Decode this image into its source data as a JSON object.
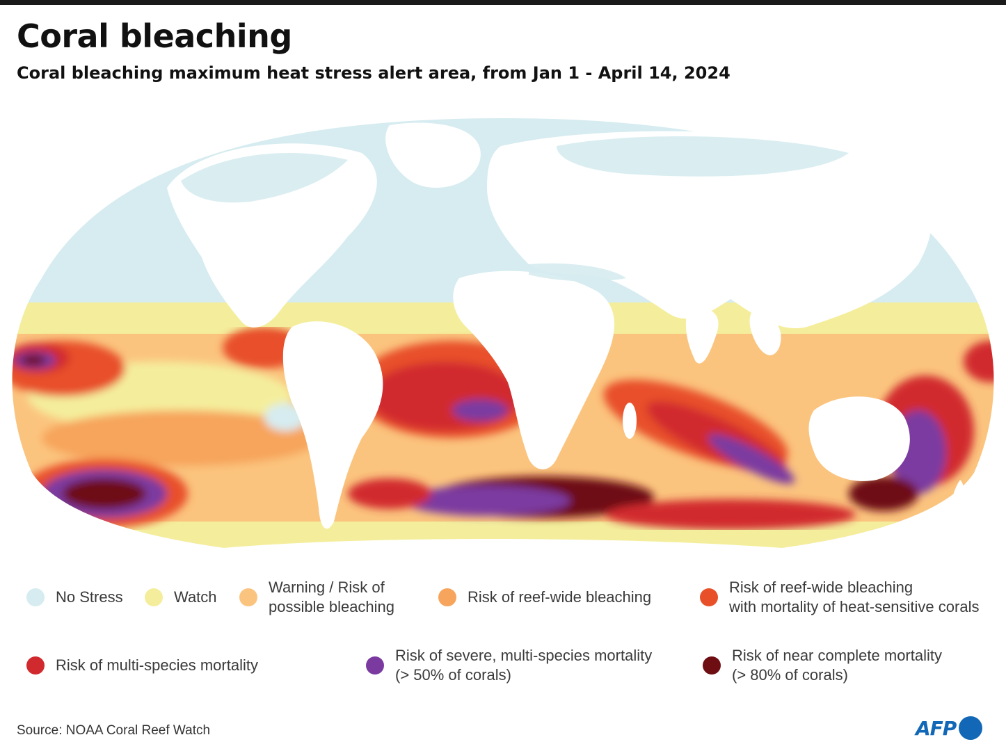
{
  "header": {
    "title": "Coral bleaching",
    "subtitle": "Coral bleaching maximum heat stress alert area,  from Jan 1 - April 14, 2024"
  },
  "colors": {
    "no_stress": "#d6ecf0",
    "watch": "#f4ee9c",
    "warning": "#fbc47e",
    "reef_wide": "#f7a45c",
    "reef_wide_mortality": "#e8502a",
    "multi_species": "#d12a2e",
    "severe": "#7b3aa0",
    "near_complete": "#6e0e12",
    "land": "#ffffff"
  },
  "legend": [
    {
      "label": "No Stress",
      "color": "#d6ecf0"
    },
    {
      "label": "Watch",
      "color": "#f4ee9c"
    },
    {
      "label": "Warning / Risk of\npossible bleaching",
      "color": "#fbc47e"
    },
    {
      "label": "Risk of reef-wide bleaching",
      "color": "#f7a45c"
    },
    {
      "label": "Risk of reef-wide bleaching\nwith mortality of heat-sensitive corals",
      "color": "#e8502a"
    },
    {
      "label": "Risk of multi-species mortality",
      "color": "#d12a2e"
    },
    {
      "label": "Risk of severe, multi-species mortality\n(> 50% of corals)",
      "color": "#7b3aa0"
    },
    {
      "label": "Risk of near complete mortality\n(> 80% of corals)",
      "color": "#6e0e12"
    }
  ],
  "footer": {
    "source": "Source: NOAA Coral Reef Watch",
    "logo": "AFP"
  }
}
